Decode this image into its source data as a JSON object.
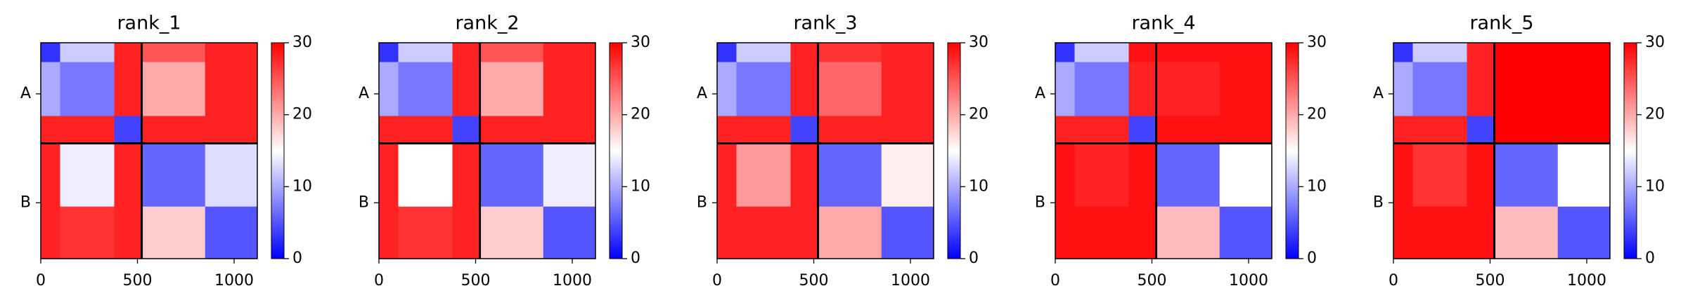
{
  "chart_data": [
    {
      "type": "heatmap",
      "title": "rank_1",
      "edges": [
        0,
        100,
        380,
        522,
        850,
        1120
      ],
      "z": [
        [
          3,
          12,
          28,
          25,
          28
        ],
        [
          10,
          7,
          28,
          20,
          28
        ],
        [
          28,
          28,
          4,
          28,
          28
        ],
        [
          28,
          14,
          28,
          6,
          13
        ],
        [
          28,
          27,
          28,
          18,
          5
        ]
      ],
      "xlim": [
        0,
        1120
      ],
      "xticks": [
        0,
        500,
        1000
      ],
      "ylim": [
        0,
        1120
      ],
      "yticks": [
        {
          "value": 265,
          "label": "A"
        },
        {
          "value": 830,
          "label": "B"
        }
      ],
      "chain_breaks": [
        522
      ],
      "clim": [
        0,
        30
      ],
      "cticks": [
        0,
        10,
        20,
        30
      ],
      "colors": [
        "#0000ff",
        "#ffffff",
        "#ff0000"
      ]
    },
    {
      "type": "heatmap",
      "title": "rank_2",
      "edges": [
        0,
        100,
        380,
        522,
        850,
        1120
      ],
      "z": [
        [
          3,
          12,
          28,
          25,
          28
        ],
        [
          10,
          7,
          28,
          20,
          28
        ],
        [
          28,
          28,
          4,
          28,
          28
        ],
        [
          28,
          15,
          28,
          6,
          14
        ],
        [
          28,
          27,
          28,
          18,
          5
        ]
      ],
      "xlim": [
        0,
        1120
      ],
      "xticks": [
        0,
        500,
        1000
      ],
      "ylim": [
        0,
        1120
      ],
      "yticks": [
        {
          "value": 265,
          "label": "A"
        },
        {
          "value": 830,
          "label": "B"
        }
      ],
      "chain_breaks": [
        522
      ],
      "clim": [
        0,
        30
      ],
      "cticks": [
        0,
        10,
        20,
        30
      ],
      "colors": [
        "#0000ff",
        "#ffffff",
        "#ff0000"
      ]
    },
    {
      "type": "heatmap",
      "title": "rank_3",
      "edges": [
        0,
        100,
        380,
        522,
        850,
        1120
      ],
      "z": [
        [
          3,
          12,
          28,
          27,
          28
        ],
        [
          10,
          7,
          28,
          24,
          28
        ],
        [
          28,
          28,
          4,
          28,
          28
        ],
        [
          28,
          21,
          28,
          6,
          16
        ],
        [
          28,
          28,
          28,
          20,
          5
        ]
      ],
      "xlim": [
        0,
        1120
      ],
      "xticks": [
        0,
        500,
        1000
      ],
      "ylim": [
        0,
        1120
      ],
      "yticks": [
        {
          "value": 265,
          "label": "A"
        },
        {
          "value": 830,
          "label": "B"
        }
      ],
      "chain_breaks": [
        522
      ],
      "clim": [
        0,
        30
      ],
      "cticks": [
        0,
        10,
        20,
        30
      ],
      "colors": [
        "#0000ff",
        "#ffffff",
        "#ff0000"
      ]
    },
    {
      "type": "heatmap",
      "title": "rank_4",
      "edges": [
        0,
        100,
        380,
        522,
        850,
        1120
      ],
      "z": [
        [
          3,
          12,
          29,
          29,
          29
        ],
        [
          10,
          7,
          28,
          28,
          29
        ],
        [
          28,
          28,
          4,
          29,
          29
        ],
        [
          29,
          28,
          29,
          6,
          15
        ],
        [
          29,
          29,
          29,
          19,
          5
        ]
      ],
      "xlim": [
        0,
        1120
      ],
      "xticks": [
        0,
        500,
        1000
      ],
      "ylim": [
        0,
        1120
      ],
      "yticks": [
        {
          "value": 265,
          "label": "A"
        },
        {
          "value": 830,
          "label": "B"
        }
      ],
      "chain_breaks": [
        522
      ],
      "clim": [
        0,
        30
      ],
      "cticks": [
        0,
        10,
        20,
        30
      ],
      "colors": [
        "#0000ff",
        "#ffffff",
        "#ff0000"
      ]
    },
    {
      "type": "heatmap",
      "title": "rank_5",
      "edges": [
        0,
        100,
        380,
        522,
        850,
        1120
      ],
      "z": [
        [
          3,
          12,
          28,
          30,
          30
        ],
        [
          10,
          7,
          28,
          30,
          30
        ],
        [
          28,
          28,
          4,
          30,
          30
        ],
        [
          29,
          27,
          29,
          6,
          15
        ],
        [
          29,
          29,
          29,
          19,
          5
        ]
      ],
      "xlim": [
        0,
        1120
      ],
      "xticks": [
        0,
        500,
        1000
      ],
      "ylim": [
        0,
        1120
      ],
      "yticks": [
        {
          "value": 265,
          "label": "A"
        },
        {
          "value": 830,
          "label": "B"
        }
      ],
      "chain_breaks": [
        522
      ],
      "clim": [
        0,
        30
      ],
      "cticks": [
        0,
        10,
        20,
        30
      ],
      "colors": [
        "#0000ff",
        "#ffffff",
        "#ff0000"
      ]
    }
  ]
}
